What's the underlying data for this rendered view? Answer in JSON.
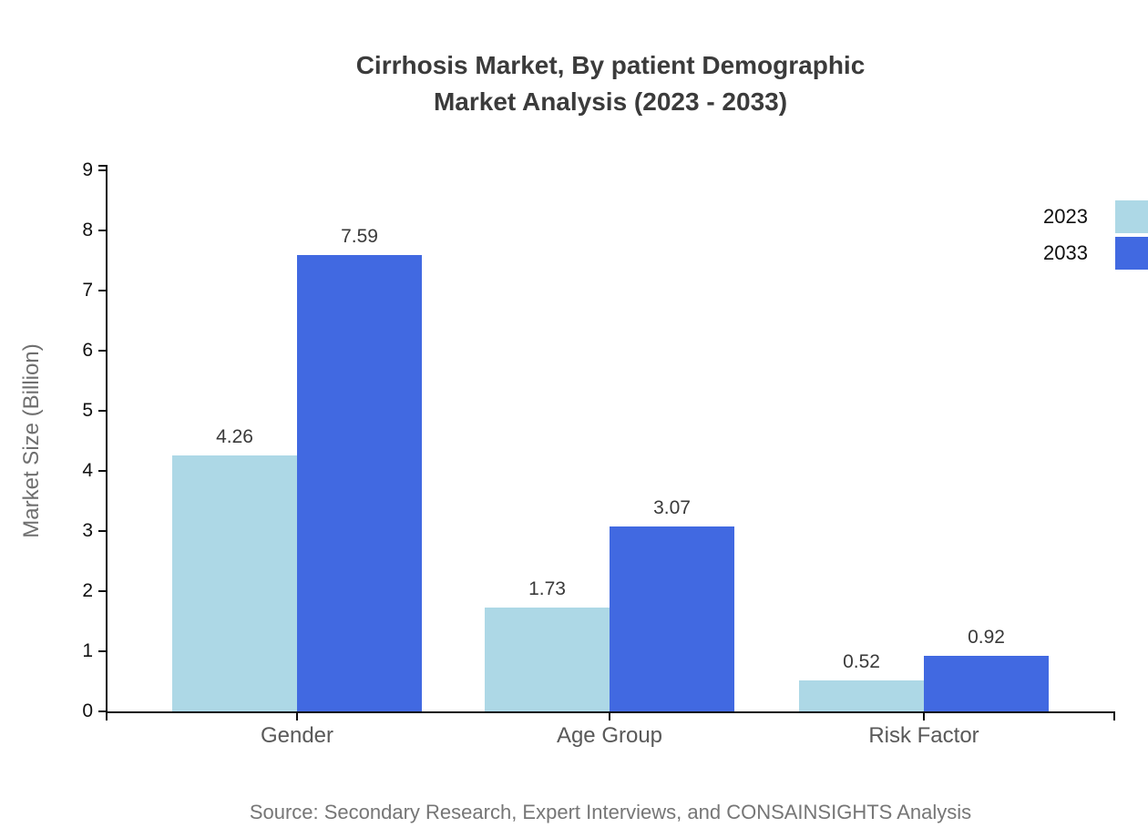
{
  "title": {
    "line1": "Cirrhosis Market, By patient Demographic",
    "line2": "Market Analysis (2023 - 2033)"
  },
  "source": "Source: Secondary Research, Expert Interviews, and CONSAINSIGHTS Analysis",
  "chart_data": {
    "type": "bar",
    "title": "Cirrhosis Market, By patient Demographic Market Analysis (2023 - 2033)",
    "categories": [
      "Gender",
      "Age Group",
      "Risk Factor"
    ],
    "series": [
      {
        "name": "2023",
        "color": "#ADD8E6",
        "values": [
          4.26,
          1.73,
          0.52
        ]
      },
      {
        "name": "2033",
        "color": "#4169E1",
        "values": [
          7.59,
          3.07,
          0.92
        ]
      }
    ],
    "xlabel": "",
    "ylabel": "Market Size (Billion)",
    "ylim": [
      0,
      9
    ],
    "yticks": [
      0,
      1,
      2,
      3,
      4,
      5,
      6,
      7,
      8,
      9
    ],
    "grid": false,
    "legend_position": "right",
    "value_labels": true,
    "axis_color": "#0f0f0f"
  }
}
